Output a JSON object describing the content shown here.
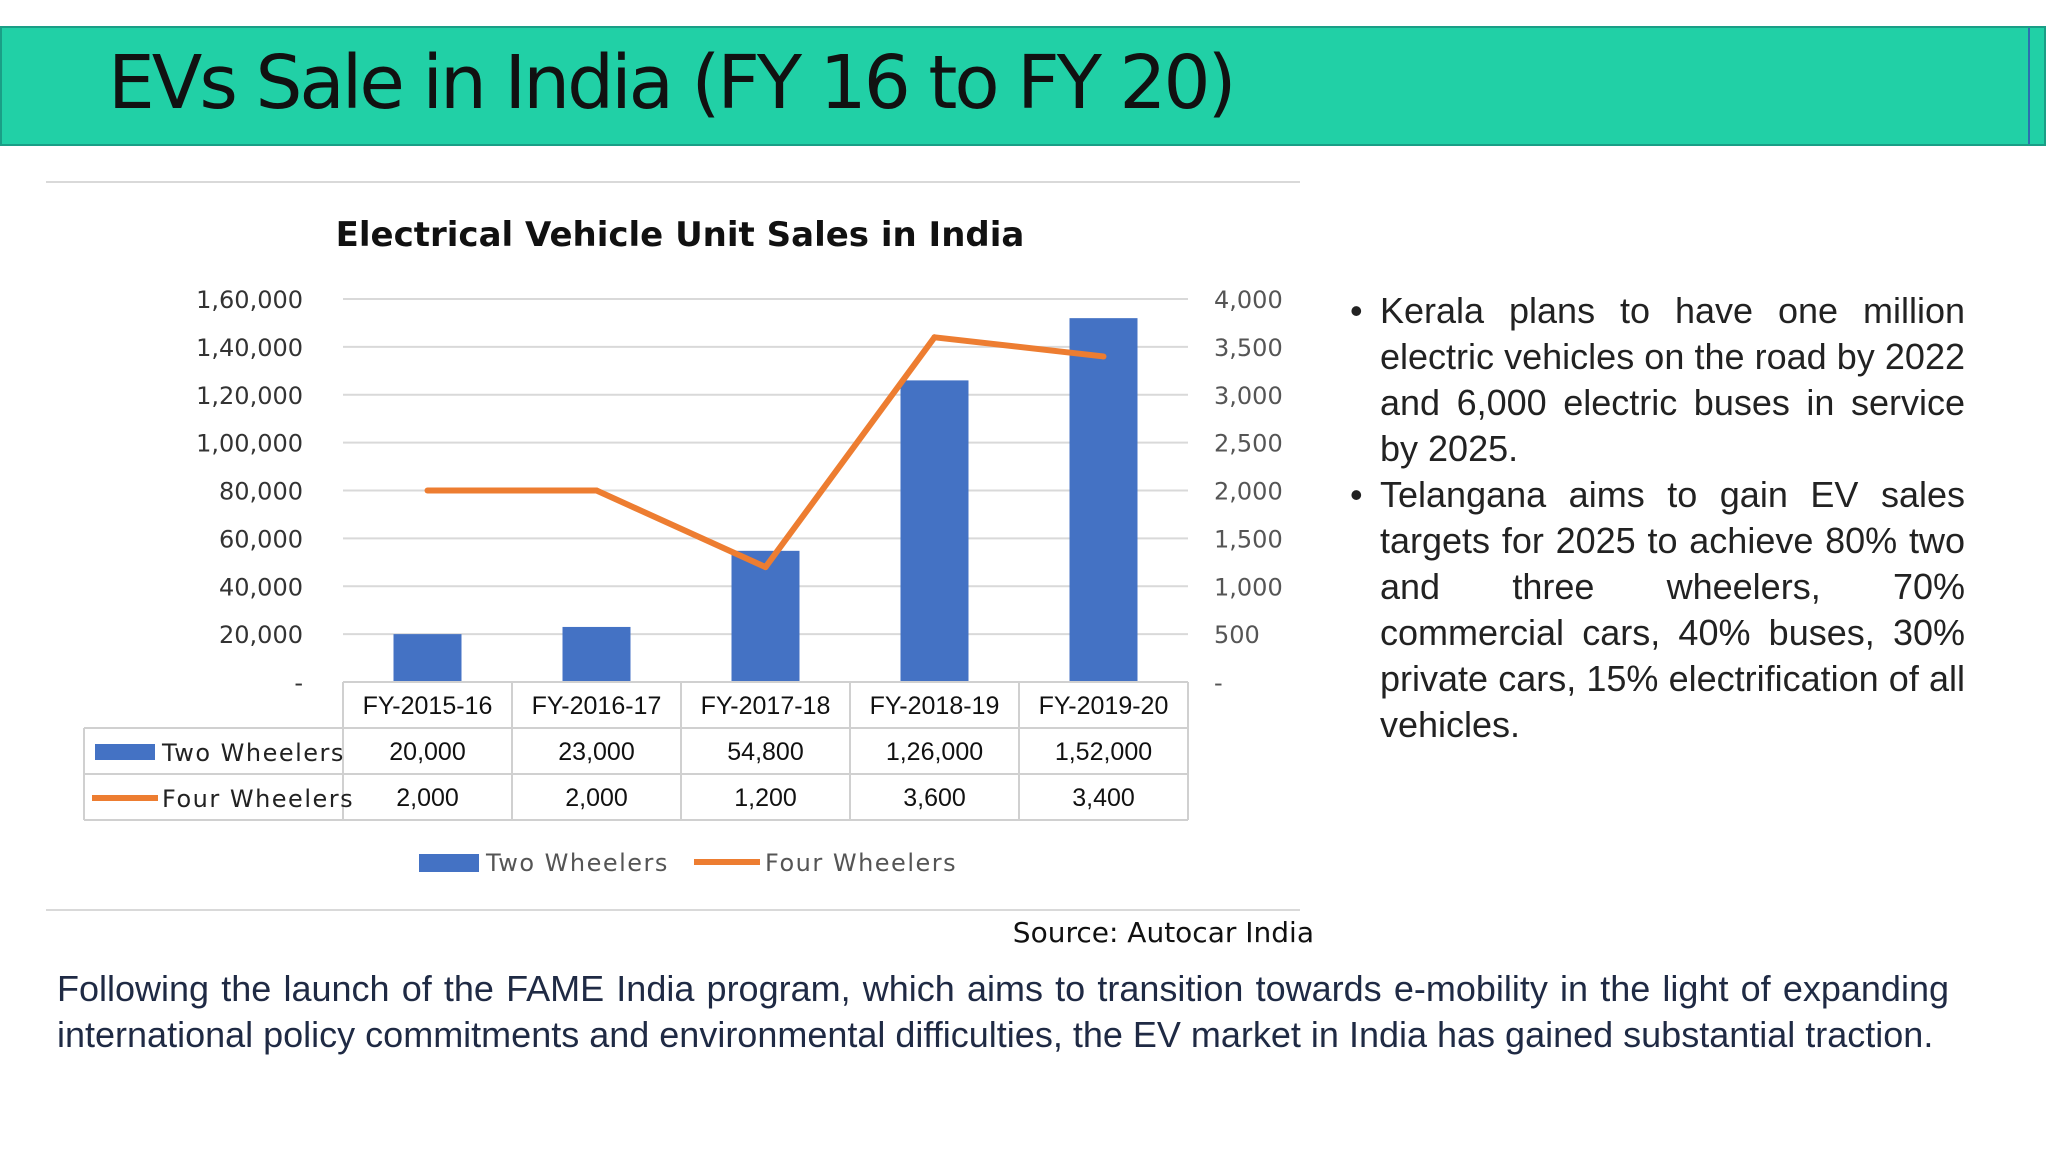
{
  "slide": {
    "title": "EVs Sale in India (FY 16 to FY 20)",
    "source": "Source: Autocar India",
    "bullets": [
      "Kerala plans to have one million electric vehicles on the road by 2022 and 6,000 electric buses in service by 2025.",
      "Telangana aims to gain EV sales targets for 2025 to achieve 80% two and three wheelers, 70% commercial cars, 40% buses, 30% private cars, 15% electrification of all vehicles."
    ],
    "paragraph": "Following the launch of the FAME India program, which aims to transition towards e-mobility in the light of expanding international policy commitments and environmental difficulties, the EV market in India has gained substantial traction."
  },
  "colors": {
    "title_bar": "#21d0a6",
    "two_wheelers": "#4472c4",
    "four_wheelers": "#ed7d31"
  },
  "chart_data": {
    "type": "bar",
    "title": "Electrical Vehicle Unit Sales in India",
    "categories": [
      "FY-2015-16",
      "FY-2016-17",
      "FY-2017-18",
      "FY-2018-19",
      "FY-2019-20"
    ],
    "series": [
      {
        "name": "Two Wheelers",
        "type": "bar",
        "axis": "left",
        "values": [
          20000,
          23000,
          54800,
          126000,
          152000
        ],
        "labels": [
          "20,000",
          "23,000",
          "54,800",
          "1,26,000",
          "1,52,000"
        ]
      },
      {
        "name": "Four Wheelers",
        "type": "line",
        "axis": "right",
        "values": [
          2000,
          2000,
          1200,
          3600,
          3400
        ],
        "labels": [
          "2,000",
          "2,000",
          "1,200",
          "3,600",
          "3,400"
        ]
      }
    ],
    "y_left": {
      "range": [
        0,
        160000
      ],
      "ticks": [
        0,
        20000,
        40000,
        60000,
        80000,
        100000,
        120000,
        140000,
        160000
      ],
      "tick_labels": [
        "-",
        "20,000",
        "40,000",
        "60,000",
        "80,000",
        "1,00,000",
        "1,20,000",
        "1,40,000",
        "1,60,000"
      ]
    },
    "y_right": {
      "range": [
        0,
        4000
      ],
      "ticks": [
        0,
        500,
        1000,
        1500,
        2000,
        2500,
        3000,
        3500,
        4000
      ],
      "tick_labels": [
        "-",
        "500",
        "1,000",
        "1,500",
        "2,000",
        "2,500",
        "3,000",
        "3,500",
        "4,000"
      ]
    },
    "grid": true,
    "data_table": true,
    "legend": "bottom"
  }
}
